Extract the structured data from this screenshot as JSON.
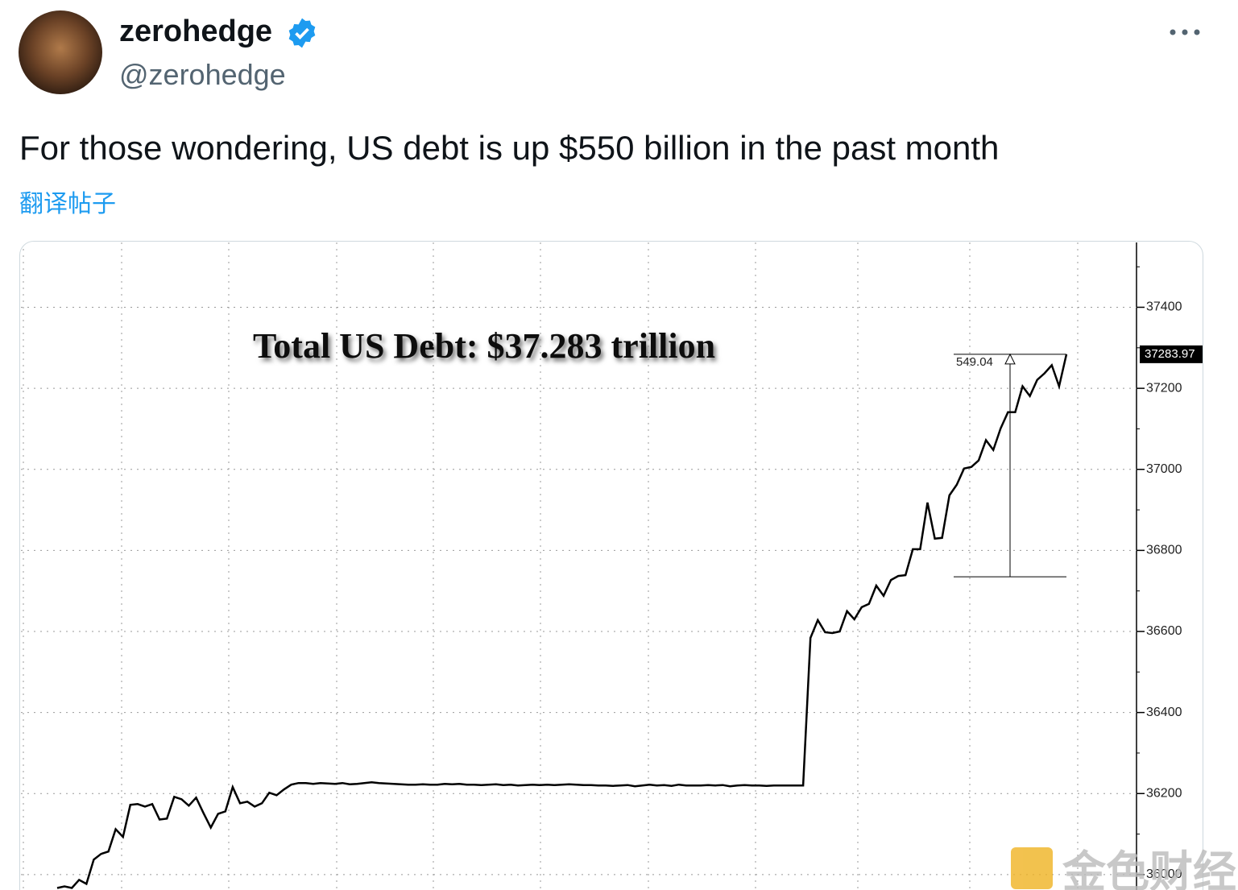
{
  "tweet": {
    "author": {
      "name": "zerohedge",
      "handle": "@zerohedge"
    },
    "text": "For those wondering, US debt is up $550 billion in the past month",
    "translate_link": "翻译帖子"
  },
  "chart_data": {
    "type": "line",
    "title": "Total US Debt: $37.283 trillion",
    "change_label": 549.04,
    "color": "#000000",
    "values": [
      35967,
      35971,
      35967,
      35987,
      35977,
      36037,
      36051,
      36057,
      36112,
      36093,
      36172,
      36174,
      36168,
      36174,
      36136,
      36138,
      36192,
      36186,
      36170,
      36190,
      36152,
      36116,
      36150,
      36156,
      36216,
      36176,
      36180,
      36168,
      36176,
      36202,
      36196,
      36210,
      36222,
      36226,
      36226,
      36224,
      36226,
      36225,
      36224,
      36226,
      36223,
      36224,
      36226,
      36228,
      36226,
      36225,
      36224,
      36223,
      36222,
      36222,
      36223,
      36222,
      36222,
      36224,
      36223,
      36224,
      36222,
      36222,
      36221,
      36222,
      36223,
      36221,
      36222,
      36220,
      36221,
      36222,
      36221,
      36222,
      36221,
      36222,
      36223,
      36222,
      36221,
      36221,
      36220,
      36220,
      36219,
      36220,
      36221,
      36218,
      36220,
      36222,
      36220,
      36221,
      36219,
      36222,
      36220,
      36220,
      36220,
      36221,
      36220,
      36221,
      36218,
      36220,
      36221,
      36220,
      36220,
      36219,
      36220,
      36220,
      36220,
      36220,
      36220,
      36584,
      36628,
      36598,
      36596,
      36600,
      36650,
      36630,
      36660,
      36668,
      36713,
      36688,
      36727,
      36737,
      36739,
      36803,
      36803,
      36918,
      36829,
      36831,
      36936,
      36962,
      37002,
      37006,
      37022,
      37072,
      37048,
      37101,
      37141,
      37141,
      37205,
      37181,
      37221,
      37237,
      37257,
      37205,
      37283.97
    ],
    "ylim": [
      35960,
      37560
    ],
    "yticks": [
      36000,
      36200,
      36400,
      36600,
      36800,
      37000,
      37200,
      37400
    ],
    "grid": true
  },
  "watermark": "金色财经"
}
